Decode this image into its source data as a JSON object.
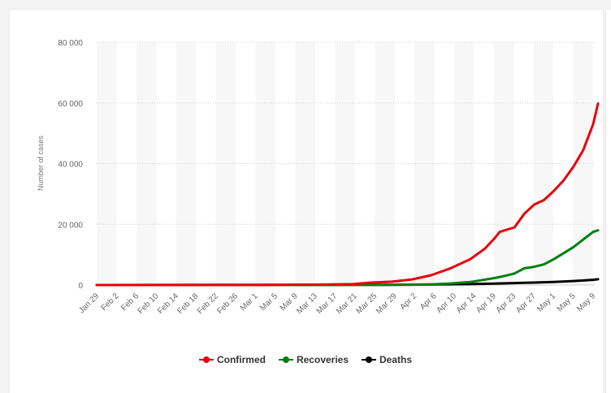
{
  "chart_data": {
    "type": "line",
    "ylabel": "Number of cases",
    "ylim": [
      0,
      80000
    ],
    "yticks": [
      0,
      20000,
      40000,
      60000,
      80000
    ],
    "ytick_labels": [
      "0",
      "20 000",
      "40 000",
      "60 000",
      "80 000"
    ],
    "x_start": "2020-01-29",
    "x_end": "2020-05-09",
    "xtick_labels": [
      "Jan 29",
      "Feb 2",
      "Feb 6",
      "Feb 10",
      "Feb 14",
      "Feb 18",
      "Feb 22",
      "Feb 26",
      "Mar 1",
      "Mar 5",
      "Mar 9",
      "Mar 13",
      "Mar 17",
      "Mar 21",
      "Mar 25",
      "Mar 29",
      "Apr 2",
      "Apr 6",
      "Apr 10",
      "Apr 14",
      "Apr 19",
      "Apr 23",
      "Apr 27",
      "May 1",
      "May 5",
      "May 9"
    ],
    "legend_position": "bottom",
    "grid": "horizontal dotted lines with alternating vertical bands",
    "series": [
      {
        "name": "Confirmed",
        "color": "#e8000b",
        "points": [
          [
            "2020-01-29",
            0
          ],
          [
            "2020-03-01",
            10
          ],
          [
            "2020-03-13",
            100
          ],
          [
            "2020-03-21",
            300
          ],
          [
            "2020-03-25",
            800
          ],
          [
            "2020-03-29",
            1100
          ],
          [
            "2020-04-02",
            1800
          ],
          [
            "2020-04-06",
            3200
          ],
          [
            "2020-04-10",
            5500
          ],
          [
            "2020-04-14",
            8500
          ],
          [
            "2020-04-17",
            12000
          ],
          [
            "2020-04-19",
            15500
          ],
          [
            "2020-04-20",
            17500
          ],
          [
            "2020-04-23",
            19000
          ],
          [
            "2020-04-25",
            23500
          ],
          [
            "2020-04-27",
            26500
          ],
          [
            "2020-04-29",
            28000
          ],
          [
            "2020-05-01",
            31000
          ],
          [
            "2020-05-03",
            34500
          ],
          [
            "2020-05-05",
            39000
          ],
          [
            "2020-05-07",
            44500
          ],
          [
            "2020-05-09",
            53000
          ],
          [
            "2020-05-10",
            59800
          ]
        ]
      },
      {
        "name": "Recoveries",
        "color": "#00800e",
        "points": [
          [
            "2020-01-29",
            0
          ],
          [
            "2020-03-29",
            50
          ],
          [
            "2020-04-06",
            200
          ],
          [
            "2020-04-10",
            500
          ],
          [
            "2020-04-14",
            1000
          ],
          [
            "2020-04-19",
            2300
          ],
          [
            "2020-04-21",
            3000
          ],
          [
            "2020-04-23",
            3800
          ],
          [
            "2020-04-25",
            5500
          ],
          [
            "2020-04-27",
            6000
          ],
          [
            "2020-04-29",
            6800
          ],
          [
            "2020-05-01",
            8500
          ],
          [
            "2020-05-03",
            10500
          ],
          [
            "2020-05-05",
            12500
          ],
          [
            "2020-05-07",
            15000
          ],
          [
            "2020-05-09",
            17500
          ],
          [
            "2020-05-10",
            18000
          ]
        ]
      },
      {
        "name": "Deaths",
        "color": "#000000",
        "points": [
          [
            "2020-01-29",
            0
          ],
          [
            "2020-03-29",
            50
          ],
          [
            "2020-04-06",
            150
          ],
          [
            "2020-04-14",
            300
          ],
          [
            "2020-04-19",
            450
          ],
          [
            "2020-04-23",
            650
          ],
          [
            "2020-04-27",
            800
          ],
          [
            "2020-05-01",
            1000
          ],
          [
            "2020-05-05",
            1300
          ],
          [
            "2020-05-09",
            1700
          ],
          [
            "2020-05-10",
            1900
          ]
        ]
      }
    ]
  }
}
